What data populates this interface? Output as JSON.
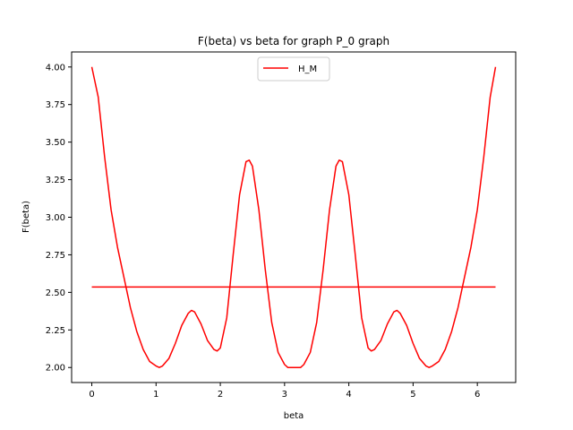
{
  "chart_data": {
    "type": "line",
    "title": "F(beta) vs beta for graph P_0 graph",
    "xlabel": "beta",
    "ylabel": "F(beta)",
    "xlim": [
      -0.314,
      6.597
    ],
    "ylim": [
      1.9,
      4.1
    ],
    "xticks": [
      0,
      1,
      2,
      3,
      4,
      5,
      6
    ],
    "xtick_labels": [
      "0",
      "1",
      "2",
      "3",
      "4",
      "5",
      "6"
    ],
    "yticks": [
      2.0,
      2.25,
      2.5,
      2.75,
      3.0,
      3.25,
      3.5,
      3.75,
      4.0
    ],
    "ytick_labels": [
      "2.00",
      "2.25",
      "2.50",
      "2.75",
      "3.00",
      "3.25",
      "3.50",
      "3.75",
      "4.00"
    ],
    "grid": false,
    "legend_position": "top-center",
    "series": [
      {
        "name": "H_M",
        "color": "#ff0000",
        "x": [
          0.0,
          0.1,
          0.2,
          0.3,
          0.4,
          0.5,
          0.6,
          0.7,
          0.8,
          0.9,
          1.0,
          1.05,
          1.1,
          1.2,
          1.3,
          1.4,
          1.5,
          1.55,
          1.6,
          1.7,
          1.8,
          1.9,
          1.95,
          2.0,
          2.1,
          2.2,
          2.3,
          2.4,
          2.45,
          2.5,
          2.6,
          2.7,
          2.8,
          2.9,
          3.0,
          3.05,
          3.1,
          3.14159,
          3.2,
          3.25,
          3.3,
          3.4,
          3.5,
          3.6,
          3.7,
          3.8,
          3.85,
          3.9,
          4.0,
          4.1,
          4.2,
          4.3,
          4.35,
          4.4,
          4.5,
          4.6,
          4.7,
          4.75,
          4.8,
          4.9,
          5.0,
          5.1,
          5.2,
          5.25,
          5.3,
          5.4,
          5.5,
          5.6,
          5.7,
          5.8,
          5.9,
          6.0,
          6.1,
          6.2,
          6.28318
        ],
        "y": [
          4.0,
          3.8,
          3.4,
          3.05,
          2.8,
          2.6,
          2.4,
          2.24,
          2.12,
          2.04,
          2.01,
          2.0,
          2.01,
          2.06,
          2.16,
          2.28,
          2.36,
          2.38,
          2.37,
          2.29,
          2.18,
          2.12,
          2.11,
          2.13,
          2.33,
          2.75,
          3.15,
          3.37,
          3.38,
          3.34,
          3.05,
          2.65,
          2.3,
          2.1,
          2.02,
          2.0,
          2.0,
          2.0,
          2.0,
          2.0,
          2.02,
          2.1,
          2.3,
          2.65,
          3.05,
          3.34,
          3.38,
          3.37,
          3.15,
          2.75,
          2.33,
          2.13,
          2.11,
          2.12,
          2.18,
          2.29,
          2.37,
          2.38,
          2.36,
          2.28,
          2.16,
          2.06,
          2.01,
          2.0,
          2.01,
          2.04,
          2.12,
          2.24,
          2.4,
          2.6,
          2.8,
          3.05,
          3.4,
          3.8,
          4.0
        ]
      },
      {
        "name": "",
        "color": "#ff0000",
        "x": [
          0.0,
          6.28318
        ],
        "y": [
          2.536,
          2.536
        ]
      }
    ]
  }
}
